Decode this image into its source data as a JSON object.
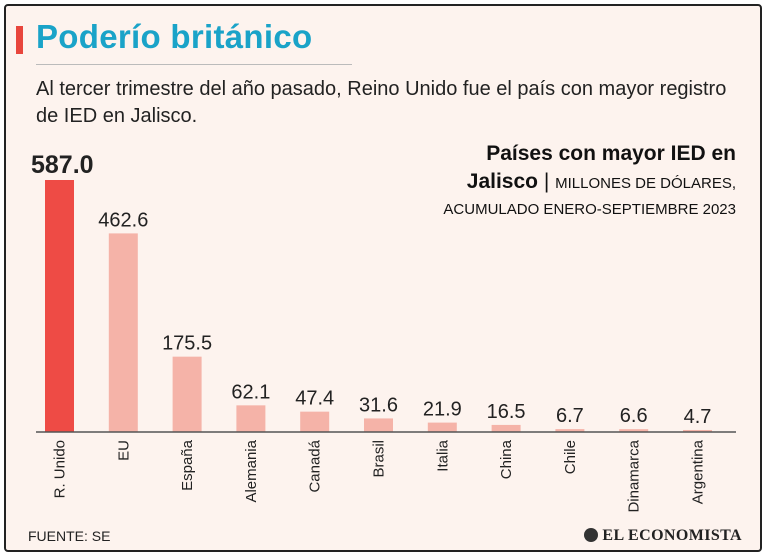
{
  "header": {
    "title": "Poderío británico",
    "subtitle": "Al tercer trimestre del año pasado, Reino Unido fue el país con mayor registro de  IED en Jalisco."
  },
  "chart_heading": {
    "line1": "Países con mayor IED en",
    "line2_bold": "Jalisco",
    "line2_sep": " | ",
    "line2_unit": "MILLONES DE DÓLARES,",
    "line3": "ACUMULADO ENERO-SEPTIEMBRE 2023"
  },
  "chart_data": {
    "type": "bar",
    "title": "Países con mayor IED en Jalisco",
    "ylabel": "Millones de dólares",
    "xlabel": "",
    "categories": [
      "R. Unido",
      "EU",
      "España",
      "Alemania",
      "Canadá",
      "Brasil",
      "Italia",
      "China",
      "Chile",
      "Dinamarca",
      "Argentina"
    ],
    "values": [
      587.0,
      462.6,
      175.5,
      62.1,
      47.4,
      31.6,
      21.9,
      16.5,
      6.7,
      6.6,
      4.7
    ],
    "value_labels": [
      "587.0",
      "462.6",
      "175.5",
      "62.1",
      "47.4",
      "31.6",
      "21.9",
      "16.5",
      "6.7",
      "6.6",
      "4.7"
    ],
    "ylim": [
      0,
      587.0
    ],
    "grid": false,
    "highlight_index": 0,
    "colors": {
      "highlight": "#ee4b45",
      "bar": "#f5b3a8",
      "axis": "#555555"
    }
  },
  "footer": {
    "source": "FUENTE:  SE",
    "brand": "EL ECONOMISTA",
    "brand_icon": "el-economista-logo-icon"
  }
}
